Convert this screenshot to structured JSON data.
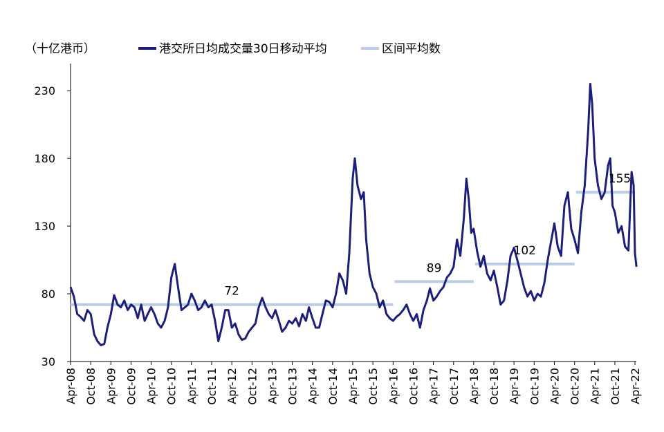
{
  "chart_data": {
    "type": "line",
    "unit_label": "（十亿港币）",
    "legend": [
      {
        "label": "港交所日均成交量30日移动平均",
        "color": "#1B1F7A",
        "kind": "line"
      },
      {
        "label": "区间平均数",
        "color": "#B9CCE4",
        "kind": "line"
      }
    ],
    "y_axis": {
      "min": 30,
      "max": 250,
      "ticks": [
        30,
        80,
        130,
        180,
        230
      ]
    },
    "x_axis": {
      "start": "2008-04",
      "end": "2022-04",
      "tick_labels": [
        "Apr-08",
        "Oct-08",
        "Apr-09",
        "Oct-09",
        "Apr-10",
        "Oct-10",
        "Apr-11",
        "Oct-11",
        "Apr-12",
        "Oct-12",
        "Apr-13",
        "Oct-13",
        "Apr-14",
        "Oct-14",
        "Apr-15",
        "Oct-15",
        "Apr-16",
        "Oct-16",
        "Apr-17",
        "Oct-17",
        "Apr-18",
        "Oct-18",
        "Apr-19",
        "Oct-19",
        "Apr-20",
        "Oct-20",
        "Apr-21",
        "Oct-21",
        "Apr-22"
      ]
    },
    "series": [
      {
        "name": "港交所日均成交量30日移动平均",
        "color": "#1B1F7A",
        "points": [
          [
            "2008-04-01",
            85
          ],
          [
            "2008-05-01",
            78
          ],
          [
            "2008-06-01",
            65
          ],
          [
            "2008-07-01",
            63
          ],
          [
            "2008-08-01",
            60
          ],
          [
            "2008-09-01",
            68
          ],
          [
            "2008-10-01",
            65
          ],
          [
            "2008-11-01",
            50
          ],
          [
            "2008-12-01",
            45
          ],
          [
            "2009-01-01",
            42
          ],
          [
            "2009-02-01",
            43
          ],
          [
            "2009-03-01",
            55
          ],
          [
            "2009-04-01",
            65
          ],
          [
            "2009-05-01",
            79
          ],
          [
            "2009-06-01",
            72
          ],
          [
            "2009-07-01",
            70
          ],
          [
            "2009-08-01",
            75
          ],
          [
            "2009-09-01",
            68
          ],
          [
            "2009-10-01",
            72
          ],
          [
            "2009-11-01",
            70
          ],
          [
            "2009-12-01",
            62
          ],
          [
            "2010-01-01",
            72
          ],
          [
            "2010-02-01",
            60
          ],
          [
            "2010-03-01",
            65
          ],
          [
            "2010-04-01",
            70
          ],
          [
            "2010-05-01",
            65
          ],
          [
            "2010-06-01",
            58
          ],
          [
            "2010-07-01",
            55
          ],
          [
            "2010-08-01",
            60
          ],
          [
            "2010-09-01",
            70
          ],
          [
            "2010-10-01",
            92
          ],
          [
            "2010-11-01",
            102
          ],
          [
            "2010-12-01",
            85
          ],
          [
            "2011-01-01",
            68
          ],
          [
            "2011-02-01",
            70
          ],
          [
            "2011-03-01",
            72
          ],
          [
            "2011-04-01",
            80
          ],
          [
            "2011-05-01",
            75
          ],
          [
            "2011-06-01",
            68
          ],
          [
            "2011-07-01",
            70
          ],
          [
            "2011-08-01",
            75
          ],
          [
            "2011-09-01",
            70
          ],
          [
            "2011-10-01",
            72
          ],
          [
            "2011-11-01",
            60
          ],
          [
            "2011-12-01",
            45
          ],
          [
            "2012-01-01",
            55
          ],
          [
            "2012-02-01",
            68
          ],
          [
            "2012-03-01",
            68
          ],
          [
            "2012-04-01",
            55
          ],
          [
            "2012-05-01",
            58
          ],
          [
            "2012-06-01",
            50
          ],
          [
            "2012-07-01",
            46
          ],
          [
            "2012-08-01",
            47
          ],
          [
            "2012-09-01",
            52
          ],
          [
            "2012-10-01",
            55
          ],
          [
            "2012-11-01",
            58
          ],
          [
            "2012-12-01",
            70
          ],
          [
            "2013-01-01",
            77
          ],
          [
            "2013-02-01",
            70
          ],
          [
            "2013-03-01",
            65
          ],
          [
            "2013-04-01",
            62
          ],
          [
            "2013-05-01",
            68
          ],
          [
            "2013-06-01",
            60
          ],
          [
            "2013-07-01",
            52
          ],
          [
            "2013-08-01",
            55
          ],
          [
            "2013-09-01",
            60
          ],
          [
            "2013-10-01",
            58
          ],
          [
            "2013-11-01",
            62
          ],
          [
            "2013-12-01",
            56
          ],
          [
            "2014-01-01",
            65
          ],
          [
            "2014-02-01",
            60
          ],
          [
            "2014-03-01",
            70
          ],
          [
            "2014-04-01",
            62
          ],
          [
            "2014-05-01",
            55
          ],
          [
            "2014-06-01",
            55
          ],
          [
            "2014-07-01",
            65
          ],
          [
            "2014-08-01",
            75
          ],
          [
            "2014-09-01",
            74
          ],
          [
            "2014-10-01",
            70
          ],
          [
            "2014-11-01",
            80
          ],
          [
            "2014-12-01",
            95
          ],
          [
            "2015-01-01",
            90
          ],
          [
            "2015-02-01",
            80
          ],
          [
            "2015-03-01",
            110
          ],
          [
            "2015-04-01",
            165
          ],
          [
            "2015-04-20",
            180
          ],
          [
            "2015-05-15",
            160
          ],
          [
            "2015-06-15",
            150
          ],
          [
            "2015-07-10",
            155
          ],
          [
            "2015-08-01",
            120
          ],
          [
            "2015-09-01",
            95
          ],
          [
            "2015-10-01",
            85
          ],
          [
            "2015-11-01",
            80
          ],
          [
            "2015-12-01",
            70
          ],
          [
            "2016-01-01",
            75
          ],
          [
            "2016-02-01",
            65
          ],
          [
            "2016-03-01",
            62
          ],
          [
            "2016-04-01",
            60
          ],
          [
            "2016-05-01",
            63
          ],
          [
            "2016-06-01",
            65
          ],
          [
            "2016-07-01",
            68
          ],
          [
            "2016-08-01",
            72
          ],
          [
            "2016-09-01",
            65
          ],
          [
            "2016-10-01",
            60
          ],
          [
            "2016-11-01",
            65
          ],
          [
            "2016-12-01",
            55
          ],
          [
            "2017-01-01",
            68
          ],
          [
            "2017-02-01",
            75
          ],
          [
            "2017-03-01",
            84
          ],
          [
            "2017-04-01",
            75
          ],
          [
            "2017-05-01",
            78
          ],
          [
            "2017-06-01",
            82
          ],
          [
            "2017-07-01",
            85
          ],
          [
            "2017-08-01",
            92
          ],
          [
            "2017-09-01",
            95
          ],
          [
            "2017-10-01",
            100
          ],
          [
            "2017-11-01",
            120
          ],
          [
            "2017-12-01",
            108
          ],
          [
            "2018-01-01",
            135
          ],
          [
            "2018-01-25",
            165
          ],
          [
            "2018-02-15",
            150
          ],
          [
            "2018-03-10",
            125
          ],
          [
            "2018-04-01",
            128
          ],
          [
            "2018-05-01",
            112
          ],
          [
            "2018-06-01",
            100
          ],
          [
            "2018-07-01",
            108
          ],
          [
            "2018-08-01",
            95
          ],
          [
            "2018-09-01",
            90
          ],
          [
            "2018-10-01",
            97
          ],
          [
            "2018-11-01",
            85
          ],
          [
            "2018-12-01",
            72
          ],
          [
            "2019-01-01",
            75
          ],
          [
            "2019-02-01",
            90
          ],
          [
            "2019-03-01",
            108
          ],
          [
            "2019-04-01",
            114
          ],
          [
            "2019-05-01",
            105
          ],
          [
            "2019-06-01",
            95
          ],
          [
            "2019-07-01",
            85
          ],
          [
            "2019-08-01",
            78
          ],
          [
            "2019-09-01",
            82
          ],
          [
            "2019-10-01",
            75
          ],
          [
            "2019-11-01",
            80
          ],
          [
            "2019-12-01",
            78
          ],
          [
            "2020-01-01",
            88
          ],
          [
            "2020-02-01",
            105
          ],
          [
            "2020-03-01",
            118
          ],
          [
            "2020-04-01",
            132
          ],
          [
            "2020-05-01",
            115
          ],
          [
            "2020-06-01",
            108
          ],
          [
            "2020-07-01",
            145
          ],
          [
            "2020-08-01",
            155
          ],
          [
            "2020-09-01",
            128
          ],
          [
            "2020-10-01",
            120
          ],
          [
            "2020-11-01",
            110
          ],
          [
            "2020-12-01",
            140
          ],
          [
            "2021-01-01",
            160
          ],
          [
            "2021-02-01",
            200
          ],
          [
            "2021-02-20",
            235
          ],
          [
            "2021-03-10",
            220
          ],
          [
            "2021-04-01",
            180
          ],
          [
            "2021-05-01",
            160
          ],
          [
            "2021-06-01",
            150
          ],
          [
            "2021-07-01",
            155
          ],
          [
            "2021-08-01",
            175
          ],
          [
            "2021-08-20",
            180
          ],
          [
            "2021-09-10",
            145
          ],
          [
            "2021-10-01",
            140
          ],
          [
            "2021-11-01",
            125
          ],
          [
            "2021-12-01",
            130
          ],
          [
            "2022-01-01",
            115
          ],
          [
            "2022-02-01",
            112
          ],
          [
            "2022-03-01",
            170
          ],
          [
            "2022-03-20",
            160
          ],
          [
            "2022-04-01",
            110
          ],
          [
            "2022-04-15",
            100
          ]
        ]
      }
    ],
    "interval_averages": [
      {
        "start": "2008-04-01",
        "end": "2016-04-01",
        "value": 72,
        "label": "72"
      },
      {
        "start": "2016-04-01",
        "end": "2018-04-01",
        "value": 89,
        "label": "89"
      },
      {
        "start": "2018-04-01",
        "end": "2020-10-01",
        "value": 102,
        "label": "102"
      },
      {
        "start": "2020-10-01",
        "end": "2022-04-01",
        "value": 155,
        "label": "155"
      }
    ]
  }
}
